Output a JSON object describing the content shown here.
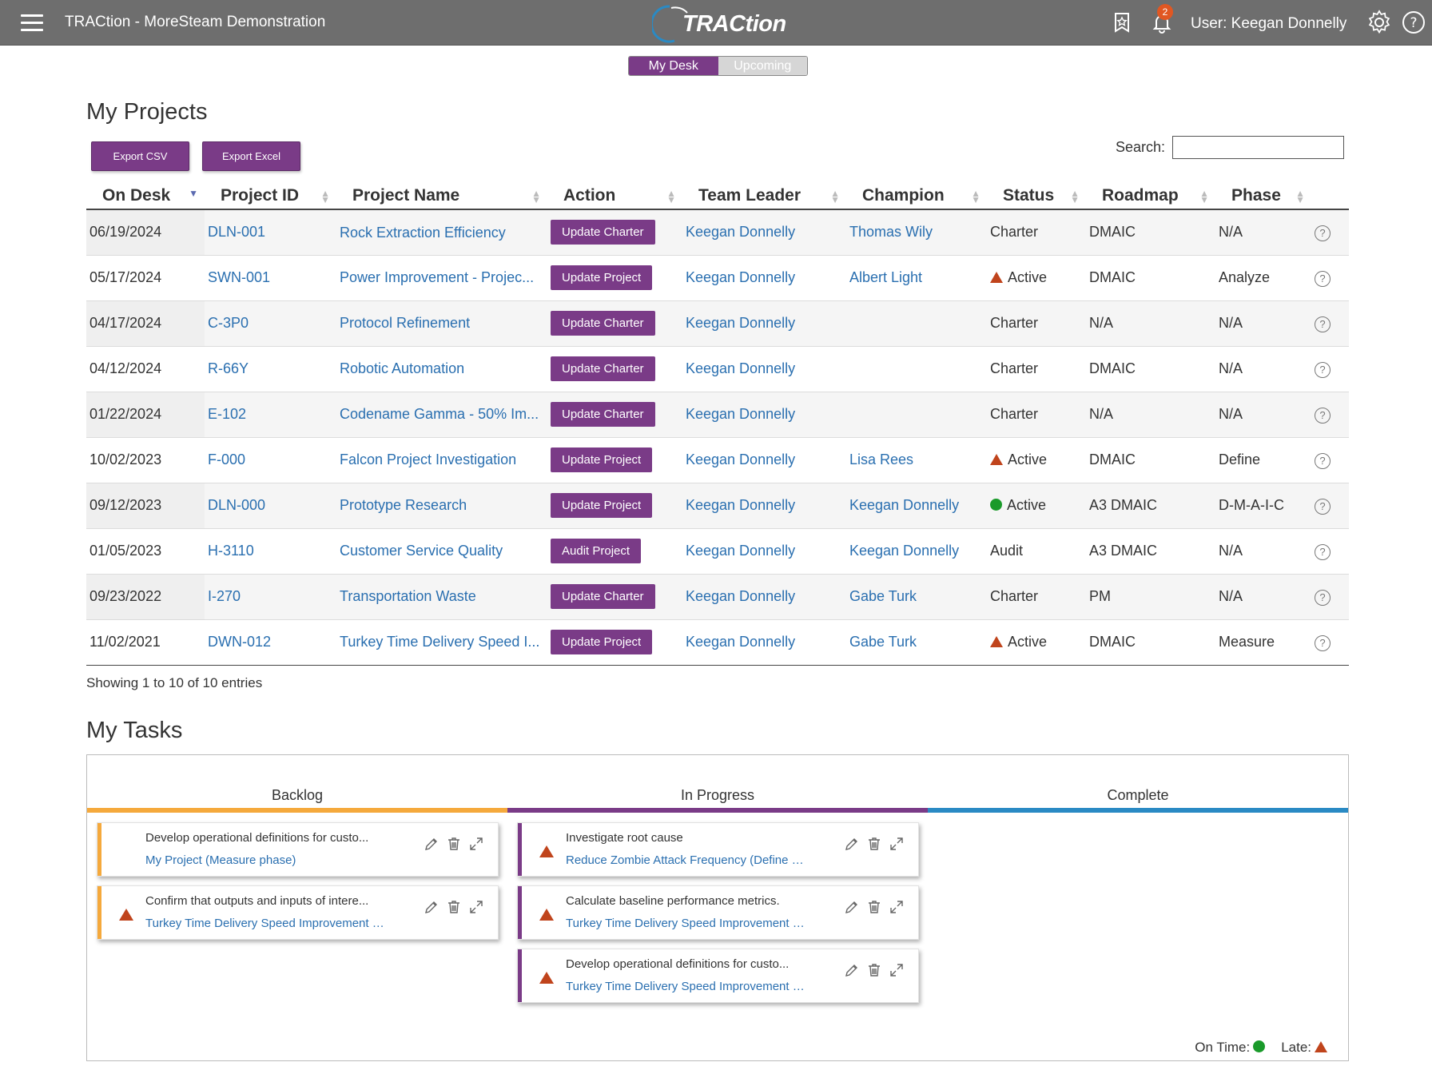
{
  "header": {
    "app_title": "TRACtion - MoreSteam Demonstration",
    "logo_text": "TRACtion",
    "notifications_count": "2",
    "user_label": "User: Keegan Donnelly",
    "icons": [
      "menu-icon",
      "bookmark-star-icon",
      "bell-icon",
      "gear-icon",
      "help-icon"
    ]
  },
  "desk_toggle": {
    "active": "My Desk",
    "inactive": "Upcoming"
  },
  "projects": {
    "title": "My Projects",
    "export_csv": "Export CSV",
    "export_excel": "Export Excel",
    "search_label": "Search:",
    "search_value": "",
    "columns": [
      "On Desk",
      "Project ID",
      "Project Name",
      "Action",
      "Team Leader",
      "Champion",
      "Status",
      "Roadmap",
      "Phase"
    ],
    "sorted_column": "On Desk",
    "rows": [
      {
        "on_desk": "06/19/2024",
        "id": "DLN-001",
        "name": "Rock Extraction Efficiency",
        "action": "Update Charter",
        "leader": "Keegan Donnelly",
        "champion": "Thomas Wily",
        "status": "Charter",
        "status_icon": "",
        "roadmap": "DMAIC",
        "phase": "N/A"
      },
      {
        "on_desk": "05/17/2024",
        "id": "SWN-001",
        "name": "Power Improvement - Projec...",
        "action": "Update Project",
        "leader": "Keegan Donnelly",
        "champion": "Albert Light",
        "status": "Active",
        "status_icon": "late",
        "roadmap": "DMAIC",
        "phase": "Analyze"
      },
      {
        "on_desk": "04/17/2024",
        "id": "C-3P0",
        "name": "Protocol Refinement",
        "action": "Update Charter",
        "leader": "Keegan Donnelly",
        "champion": "",
        "status": "Charter",
        "status_icon": "",
        "roadmap": "N/A",
        "phase": "N/A"
      },
      {
        "on_desk": "04/12/2024",
        "id": "R-66Y",
        "name": "Robotic Automation",
        "action": "Update Charter",
        "leader": "Keegan Donnelly",
        "champion": "",
        "status": "Charter",
        "status_icon": "",
        "roadmap": "DMAIC",
        "phase": "N/A"
      },
      {
        "on_desk": "01/22/2024",
        "id": "E-102",
        "name": "Codename Gamma - 50% Im...",
        "action": "Update Charter",
        "leader": "Keegan Donnelly",
        "champion": "",
        "status": "Charter",
        "status_icon": "",
        "roadmap": "N/A",
        "phase": "N/A"
      },
      {
        "on_desk": "10/02/2023",
        "id": "F-000",
        "name": "Falcon Project Investigation",
        "action": "Update Project",
        "leader": "Keegan Donnelly",
        "champion": "Lisa Rees",
        "status": "Active",
        "status_icon": "late",
        "roadmap": "DMAIC",
        "phase": "Define"
      },
      {
        "on_desk": "09/12/2023",
        "id": "DLN-000",
        "name": "Prototype Research",
        "action": "Update Project",
        "leader": "Keegan Donnelly",
        "champion": "Keegan Donnelly",
        "status": "Active",
        "status_icon": "on-time",
        "roadmap": "A3 DMAIC",
        "phase": "D-M-A-I-C"
      },
      {
        "on_desk": "01/05/2023",
        "id": "H-3110",
        "name": "Customer Service Quality",
        "action": "Audit Project",
        "leader": "Keegan Donnelly",
        "champion": "Keegan Donnelly",
        "status": "Audit",
        "status_icon": "",
        "roadmap": "A3 DMAIC",
        "phase": "N/A"
      },
      {
        "on_desk": "09/23/2022",
        "id": "I-270",
        "name": "Transportation Waste",
        "action": "Update Charter",
        "leader": "Keegan Donnelly",
        "champion": "Gabe Turk",
        "status": "Charter",
        "status_icon": "",
        "roadmap": "PM",
        "phase": "N/A"
      },
      {
        "on_desk": "11/02/2021",
        "id": "DWN-012",
        "name": "Turkey Time Delivery Speed I...",
        "action": "Update Project",
        "leader": "Keegan Donnelly",
        "champion": "Gabe Turk",
        "status": "Active",
        "status_icon": "late",
        "roadmap": "DMAIC",
        "phase": "Measure"
      }
    ],
    "showing": "Showing 1 to 10 of 10 entries"
  },
  "tasks": {
    "title": "My Tasks",
    "columns": [
      {
        "label": "Backlog",
        "color": "#f5a93c",
        "cards": [
          {
            "title": "Develop operational definitions for custo...",
            "project": "My Project (Measure phase)",
            "late": false
          },
          {
            "title": "Confirm that outputs and inputs of intere...",
            "project": "Turkey Time Delivery Speed Improvement (...",
            "late": true
          }
        ]
      },
      {
        "label": "In Progress",
        "color": "#7a3b87",
        "cards": [
          {
            "title": "Investigate root cause",
            "project": "Reduce Zombie Attack Frequency (Define p...",
            "late": true
          },
          {
            "title": "Calculate baseline performance metrics.",
            "project": "Turkey Time Delivery Speed Improvement (...",
            "late": true
          },
          {
            "title": "Develop operational definitions for custo...",
            "project": "Turkey Time Delivery Speed Improvement (...",
            "late": true
          }
        ]
      },
      {
        "label": "Complete",
        "color": "#2a8ac4",
        "cards": []
      }
    ],
    "legend_on_time": "On Time:",
    "legend_late": "Late:"
  },
  "colors": {
    "accent": "#7a3b87",
    "topbar": "#6e6e6e",
    "late": "#c0441c",
    "on_time": "#1a9a2a",
    "link": "#2a6fb0"
  }
}
